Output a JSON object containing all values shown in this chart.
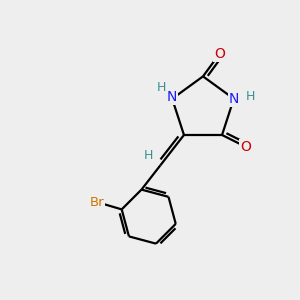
{
  "background_color": "#eeeeee",
  "atom_colors": {
    "C": "#000000",
    "N": "#1a1aff",
    "O": "#cc0000",
    "H": "#3a9090",
    "Br": "#cc7700"
  },
  "bond_color": "#000000",
  "bond_width": 1.6,
  "figsize": [
    3.0,
    3.0
  ],
  "dpi": 100,
  "xlim": [
    0,
    10
  ],
  "ylim": [
    0,
    10
  ]
}
